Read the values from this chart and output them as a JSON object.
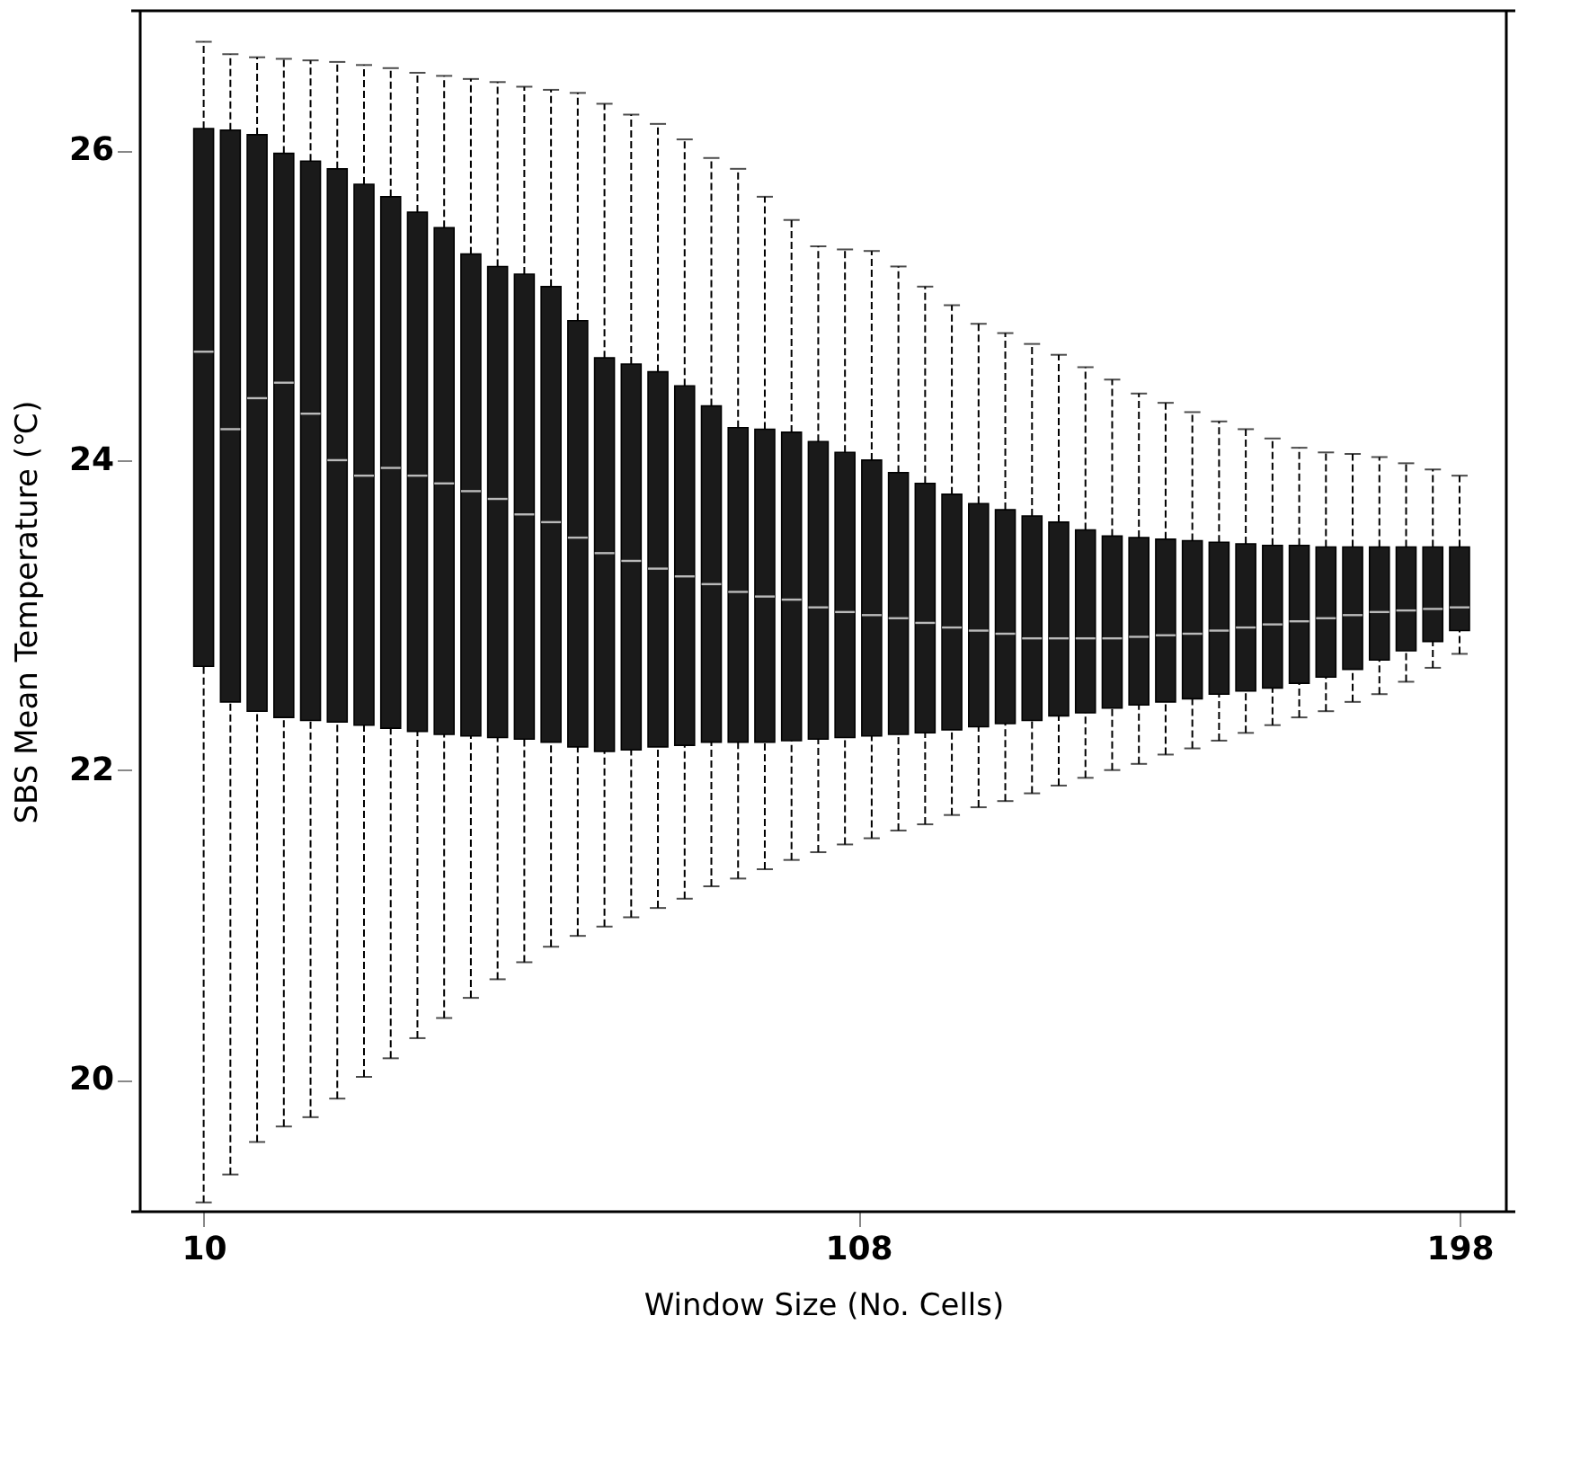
{
  "chart_data": {
    "type": "box",
    "xlabel": "Window Size (No. Cells)",
    "ylabel": "SBS Mean Temperature (℃)",
    "x": [
      10,
      14,
      18,
      22,
      26,
      30,
      34,
      38,
      42,
      46,
      50,
      54,
      58,
      62,
      66,
      70,
      74,
      78,
      82,
      86,
      90,
      94,
      98,
      102,
      106,
      110,
      114,
      118,
      122,
      126,
      130,
      134,
      138,
      142,
      146,
      150,
      154,
      158,
      162,
      166,
      170,
      174,
      178,
      182,
      186,
      190,
      194,
      198
    ],
    "boxes": [
      {
        "low": 19.21,
        "q1": 22.67,
        "median": 24.7,
        "q3": 26.14,
        "high": 26.7
      },
      {
        "low": 19.39,
        "q1": 22.44,
        "median": 24.2,
        "q3": 26.13,
        "high": 26.62
      },
      {
        "low": 19.6,
        "q1": 22.38,
        "median": 24.4,
        "q3": 26.1,
        "high": 26.6
      },
      {
        "low": 19.7,
        "q1": 22.34,
        "median": 24.5,
        "q3": 25.98,
        "high": 26.59
      },
      {
        "low": 19.76,
        "q1": 22.32,
        "median": 24.3,
        "q3": 25.93,
        "high": 26.58
      },
      {
        "low": 19.88,
        "q1": 22.31,
        "median": 24.0,
        "q3": 25.88,
        "high": 26.57
      },
      {
        "low": 20.02,
        "q1": 22.29,
        "median": 23.9,
        "q3": 25.78,
        "high": 26.55
      },
      {
        "low": 20.14,
        "q1": 22.27,
        "median": 23.95,
        "q3": 25.7,
        "high": 26.53
      },
      {
        "low": 20.27,
        "q1": 22.25,
        "median": 23.9,
        "q3": 25.6,
        "high": 26.5
      },
      {
        "low": 20.4,
        "q1": 22.23,
        "median": 23.85,
        "q3": 25.5,
        "high": 26.48
      },
      {
        "low": 20.53,
        "q1": 22.22,
        "median": 23.8,
        "q3": 25.33,
        "high": 26.46
      },
      {
        "low": 20.65,
        "q1": 22.21,
        "median": 23.75,
        "q3": 25.25,
        "high": 26.44
      },
      {
        "low": 20.76,
        "q1": 22.2,
        "median": 23.65,
        "q3": 25.2,
        "high": 26.41
      },
      {
        "low": 20.86,
        "q1": 22.18,
        "median": 23.6,
        "q3": 25.12,
        "high": 26.39
      },
      {
        "low": 20.93,
        "q1": 22.15,
        "median": 23.5,
        "q3": 24.9,
        "high": 26.37
      },
      {
        "low": 20.99,
        "q1": 22.12,
        "median": 23.4,
        "q3": 24.66,
        "high": 26.3
      },
      {
        "low": 21.05,
        "q1": 22.13,
        "median": 23.35,
        "q3": 24.62,
        "high": 26.23
      },
      {
        "low": 21.11,
        "q1": 22.15,
        "median": 23.3,
        "q3": 24.57,
        "high": 26.17
      },
      {
        "low": 21.17,
        "q1": 22.16,
        "median": 23.25,
        "q3": 24.48,
        "high": 26.07
      },
      {
        "low": 21.25,
        "q1": 22.18,
        "median": 23.2,
        "q3": 24.35,
        "high": 25.95
      },
      {
        "low": 21.3,
        "q1": 22.18,
        "median": 23.15,
        "q3": 24.21,
        "high": 25.88
      },
      {
        "low": 21.36,
        "q1": 22.18,
        "median": 23.12,
        "q3": 24.2,
        "high": 25.7
      },
      {
        "low": 21.42,
        "q1": 22.19,
        "median": 23.1,
        "q3": 24.18,
        "high": 25.55
      },
      {
        "low": 21.47,
        "q1": 22.2,
        "median": 23.05,
        "q3": 24.12,
        "high": 25.38
      },
      {
        "low": 21.52,
        "q1": 22.21,
        "median": 23.02,
        "q3": 24.05,
        "high": 25.36
      },
      {
        "low": 21.56,
        "q1": 22.22,
        "median": 23.0,
        "q3": 24.0,
        "high": 25.35
      },
      {
        "low": 21.61,
        "q1": 22.23,
        "median": 22.98,
        "q3": 23.92,
        "high": 25.25
      },
      {
        "low": 21.65,
        "q1": 22.24,
        "median": 22.95,
        "q3": 23.85,
        "high": 25.12
      },
      {
        "low": 21.71,
        "q1": 22.26,
        "median": 22.92,
        "q3": 23.78,
        "high": 25.0
      },
      {
        "low": 21.76,
        "q1": 22.28,
        "median": 22.9,
        "q3": 23.72,
        "high": 24.88
      },
      {
        "low": 21.8,
        "q1": 22.3,
        "median": 22.88,
        "q3": 23.68,
        "high": 24.82
      },
      {
        "low": 21.85,
        "q1": 22.32,
        "median": 22.85,
        "q3": 23.64,
        "high": 24.75
      },
      {
        "low": 21.9,
        "q1": 22.35,
        "median": 22.85,
        "q3": 23.6,
        "high": 24.68
      },
      {
        "low": 21.95,
        "q1": 22.37,
        "median": 22.85,
        "q3": 23.55,
        "high": 24.6
      },
      {
        "low": 22.0,
        "q1": 22.4,
        "median": 22.85,
        "q3": 23.51,
        "high": 24.52
      },
      {
        "low": 22.04,
        "q1": 22.42,
        "median": 22.86,
        "q3": 23.5,
        "high": 24.43
      },
      {
        "low": 22.1,
        "q1": 22.44,
        "median": 22.87,
        "q3": 23.49,
        "high": 24.37
      },
      {
        "low": 22.14,
        "q1": 22.46,
        "median": 22.88,
        "q3": 23.48,
        "high": 24.31
      },
      {
        "low": 22.19,
        "q1": 22.49,
        "median": 22.9,
        "q3": 23.47,
        "high": 24.25
      },
      {
        "low": 22.24,
        "q1": 22.51,
        "median": 22.92,
        "q3": 23.46,
        "high": 24.2
      },
      {
        "low": 22.29,
        "q1": 22.53,
        "median": 22.94,
        "q3": 23.45,
        "high": 24.14
      },
      {
        "low": 22.34,
        "q1": 22.56,
        "median": 22.96,
        "q3": 23.45,
        "high": 24.08
      },
      {
        "low": 22.38,
        "q1": 22.6,
        "median": 22.98,
        "q3": 23.44,
        "high": 24.05
      },
      {
        "low": 22.44,
        "q1": 22.65,
        "median": 23.0,
        "q3": 23.44,
        "high": 24.04
      },
      {
        "low": 22.49,
        "q1": 22.71,
        "median": 23.02,
        "q3": 23.44,
        "high": 24.02
      },
      {
        "low": 22.57,
        "q1": 22.77,
        "median": 23.03,
        "q3": 23.44,
        "high": 23.98
      },
      {
        "low": 22.66,
        "q1": 22.83,
        "median": 23.04,
        "q3": 23.44,
        "high": 23.94
      },
      {
        "low": 22.75,
        "q1": 22.9,
        "median": 23.05,
        "q3": 23.44,
        "high": 23.9
      }
    ],
    "xlim": [
      0.5,
      205
    ],
    "xticks": [
      10,
      108,
      198
    ],
    "ylim": [
      19.15,
      26.9
    ],
    "yticks": [
      20,
      22,
      24,
      26
    ],
    "grid": false
  }
}
